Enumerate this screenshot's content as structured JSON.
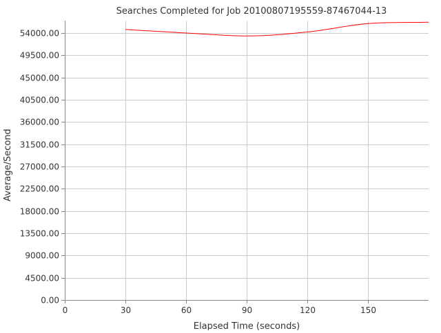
{
  "chart_data": {
    "type": "line",
    "title": "Searches Completed for Job 20100807195559-87467044-13",
    "xlabel": "Elapsed Time (seconds)",
    "ylabel": "Average/Second",
    "xlim": [
      0,
      180
    ],
    "ylim": [
      0,
      56500
    ],
    "x_ticks": [
      0,
      30,
      60,
      90,
      120,
      150
    ],
    "x_tick_labels": [
      "0",
      "30",
      "60",
      "90",
      "120",
      "150"
    ],
    "y_ticks": [
      0,
      4500,
      9000,
      13500,
      18000,
      22500,
      27000,
      31500,
      36000,
      40500,
      45000,
      49500,
      54000
    ],
    "y_tick_labels": [
      "0.00",
      "4500.00",
      "9000.00",
      "13500.00",
      "18000.00",
      "22500.00",
      "27000.00",
      "31500.00",
      "36000.00",
      "40500.00",
      "45000.00",
      "49500.00",
      "54000.00"
    ],
    "grid": true,
    "series": [
      {
        "color": "#ff0000",
        "x": [
          30,
          60,
          90,
          120,
          150,
          180
        ],
        "y": [
          54700,
          54000,
          53400,
          54200,
          55900,
          56200
        ]
      }
    ]
  }
}
